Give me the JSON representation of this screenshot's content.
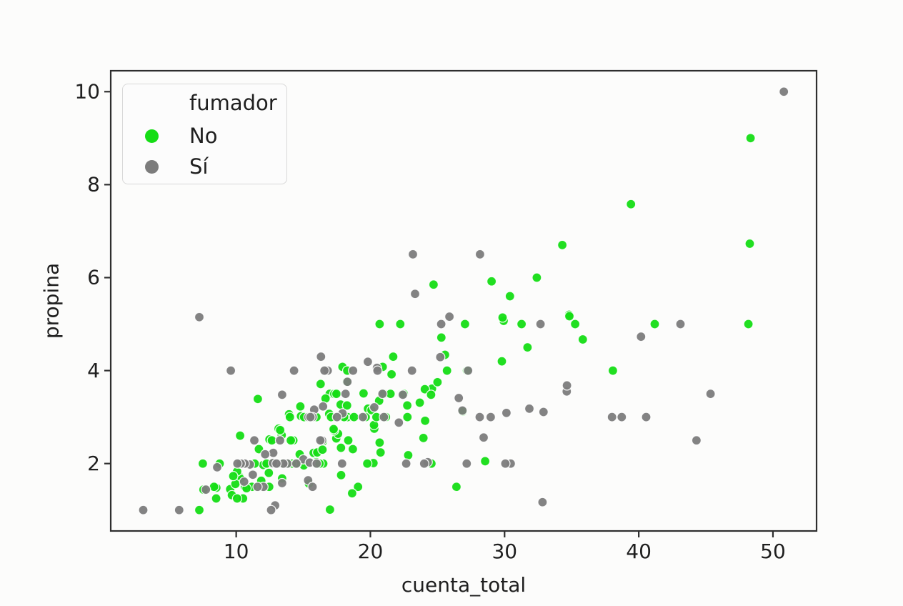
{
  "figure": {
    "background": "#fcfcfb",
    "text_color": "#1f1f1f",
    "spine_color": "#2e2e2e"
  },
  "chart_data": {
    "type": "scatter",
    "title": "",
    "xlabel": "cuenta_total",
    "ylabel": "propina",
    "xlim": [
      0.65,
      53.25
    ],
    "ylim": [
      0.55,
      10.45
    ],
    "x_ticks": [
      10,
      20,
      30,
      40,
      50
    ],
    "y_ticks": [
      2,
      4,
      6,
      8,
      10
    ],
    "grid": false,
    "legend": {
      "title": "fumador",
      "position": "upper left"
    },
    "series": [
      {
        "name": "No",
        "color": "#15dd15",
        "points": [
          [
            16.99,
            1.01
          ],
          [
            10.34,
            1.66
          ],
          [
            21.01,
            3.5
          ],
          [
            23.68,
            3.31
          ],
          [
            24.59,
            3.61
          ],
          [
            25.29,
            4.71
          ],
          [
            8.77,
            2.0
          ],
          [
            26.88,
            3.12
          ],
          [
            15.04,
            1.96
          ],
          [
            14.78,
            3.23
          ],
          [
            10.27,
            1.71
          ],
          [
            35.26,
            5.0
          ],
          [
            15.42,
            1.57
          ],
          [
            18.43,
            3.0
          ],
          [
            14.83,
            3.02
          ],
          [
            21.58,
            3.92
          ],
          [
            10.33,
            1.67
          ],
          [
            16.29,
            3.71
          ],
          [
            16.97,
            3.5
          ],
          [
            20.65,
            3.35
          ],
          [
            17.92,
            4.08
          ],
          [
            20.29,
            2.75
          ],
          [
            15.77,
            2.23
          ],
          [
            39.42,
            7.58
          ],
          [
            19.82,
            3.18
          ],
          [
            17.81,
            2.34
          ],
          [
            13.37,
            2.0
          ],
          [
            12.69,
            2.0
          ],
          [
            21.7,
            4.3
          ],
          [
            19.65,
            3.0
          ],
          [
            9.55,
            1.45
          ],
          [
            18.35,
            2.5
          ],
          [
            15.06,
            3.0
          ],
          [
            20.69,
            2.45
          ],
          [
            17.78,
            3.27
          ],
          [
            24.06,
            3.6
          ],
          [
            16.31,
            2.0
          ],
          [
            16.93,
            3.07
          ],
          [
            18.69,
            2.31
          ],
          [
            31.27,
            5.0
          ],
          [
            16.04,
            2.24
          ],
          [
            17.46,
            2.54
          ],
          [
            13.94,
            3.06
          ],
          [
            9.68,
            1.32
          ],
          [
            30.4,
            5.6
          ],
          [
            18.29,
            3.0
          ],
          [
            22.23,
            5.0
          ],
          [
            32.4,
            6.0
          ],
          [
            28.55,
            2.05
          ],
          [
            18.04,
            3.0
          ],
          [
            12.54,
            2.5
          ],
          [
            10.29,
            2.6
          ],
          [
            34.81,
            5.2
          ],
          [
            9.94,
            1.56
          ],
          [
            25.56,
            4.34
          ],
          [
            19.49,
            3.51
          ],
          [
            26.41,
            1.5
          ],
          [
            48.27,
            6.73
          ],
          [
            17.59,
            2.64
          ],
          [
            20.08,
            3.15
          ],
          [
            16.45,
            2.47
          ],
          [
            20.23,
            2.01
          ],
          [
            12.02,
            1.97
          ],
          [
            17.07,
            3.0
          ],
          [
            14.73,
            2.2
          ],
          [
            10.51,
            1.25
          ],
          [
            27.2,
            4.0
          ],
          [
            22.76,
            3.0
          ],
          [
            17.29,
            2.71
          ],
          [
            16.66,
            3.4
          ],
          [
            10.07,
            1.83
          ],
          [
            15.98,
            2.03
          ],
          [
            34.83,
            5.17
          ],
          [
            13.03,
            2.0
          ],
          [
            18.28,
            4.0
          ],
          [
            24.71,
            5.85
          ],
          [
            21.16,
            3.0
          ],
          [
            22.49,
            3.5
          ],
          [
            22.75,
            3.25
          ],
          [
            12.46,
            1.5
          ],
          [
            20.92,
            4.08
          ],
          [
            18.24,
            3.76
          ],
          [
            14.0,
            3.0
          ],
          [
            7.25,
            1.0
          ],
          [
            38.07,
            4.0
          ],
          [
            23.95,
            2.55
          ],
          [
            25.71,
            4.0
          ],
          [
            17.31,
            3.5
          ],
          [
            29.93,
            5.07
          ],
          [
            10.65,
            1.5
          ],
          [
            12.43,
            1.8
          ],
          [
            24.08,
            2.92
          ],
          [
            11.69,
            2.31
          ],
          [
            13.42,
            1.68
          ],
          [
            14.26,
            2.5
          ],
          [
            15.95,
            2.0
          ],
          [
            12.48,
            2.52
          ],
          [
            29.8,
            4.2
          ],
          [
            8.52,
            1.48
          ],
          [
            14.52,
            2.0
          ],
          [
            11.38,
            2.0
          ],
          [
            22.82,
            2.18
          ],
          [
            19.08,
            1.5
          ],
          [
            20.27,
            2.83
          ],
          [
            11.17,
            1.5
          ],
          [
            12.26,
            2.0
          ],
          [
            18.26,
            3.25
          ],
          [
            8.51,
            1.25
          ],
          [
            10.33,
            2.0
          ],
          [
            14.15,
            2.0
          ],
          [
            13.16,
            2.75
          ],
          [
            17.47,
            3.5
          ],
          [
            34.3,
            6.7
          ],
          [
            41.19,
            5.0
          ],
          [
            27.05,
            5.0
          ],
          [
            16.43,
            2.3
          ],
          [
            8.35,
            1.5
          ],
          [
            18.64,
            1.36
          ],
          [
            11.87,
            1.63
          ],
          [
            9.78,
            1.73
          ],
          [
            7.51,
            2.0
          ],
          [
            14.07,
            2.5
          ],
          [
            13.13,
            2.0
          ],
          [
            17.26,
            2.74
          ],
          [
            24.55,
            2.0
          ],
          [
            19.77,
            2.0
          ],
          [
            29.85,
            5.14
          ],
          [
            48.17,
            5.0
          ],
          [
            25.0,
            3.75
          ],
          [
            13.39,
            2.61
          ],
          [
            16.49,
            2.0
          ],
          [
            21.5,
            3.5
          ],
          [
            12.66,
            2.5
          ],
          [
            16.21,
            2.0
          ],
          [
            13.81,
            2.0
          ],
          [
            24.52,
            3.48
          ],
          [
            20.76,
            2.24
          ],
          [
            31.71,
            4.5
          ],
          [
            48.33,
            9.0
          ],
          [
            7.56,
            1.44
          ],
          [
            20.69,
            5.0
          ],
          [
            15.98,
            3.0
          ],
          [
            20.45,
            3.0
          ],
          [
            13.28,
            2.72
          ],
          [
            11.61,
            3.39
          ],
          [
            10.77,
            1.47
          ],
          [
            10.07,
            1.25
          ],
          [
            35.83,
            4.67
          ],
          [
            29.03,
            5.92
          ],
          [
            17.82,
            1.75
          ],
          [
            18.78,
            3.0
          ]
        ]
      },
      {
        "name": "Sí",
        "color": "#7c7c7c",
        "points": [
          [
            38.01,
            3.0
          ],
          [
            11.24,
            1.76
          ],
          [
            20.29,
            3.21
          ],
          [
            13.81,
            2.0
          ],
          [
            11.02,
            1.98
          ],
          [
            18.29,
            3.76
          ],
          [
            3.07,
            1.0
          ],
          [
            15.01,
            2.09
          ],
          [
            26.86,
            3.14
          ],
          [
            25.28,
            5.0
          ],
          [
            17.92,
            3.08
          ],
          [
            19.44,
            3.0
          ],
          [
            32.68,
            5.0
          ],
          [
            28.97,
            3.0
          ],
          [
            5.75,
            1.0
          ],
          [
            16.32,
            4.3
          ],
          [
            40.17,
            4.73
          ],
          [
            27.28,
            4.0
          ],
          [
            12.03,
            1.5
          ],
          [
            21.01,
            3.0
          ],
          [
            11.35,
            2.5
          ],
          [
            15.38,
            3.0
          ],
          [
            44.3,
            2.5
          ],
          [
            22.42,
            3.48
          ],
          [
            15.36,
            1.64
          ],
          [
            20.49,
            4.06
          ],
          [
            25.21,
            4.29
          ],
          [
            14.31,
            4.0
          ],
          [
            10.59,
            1.61
          ],
          [
            10.63,
            2.0
          ],
          [
            50.81,
            10.0
          ],
          [
            15.81,
            3.16
          ],
          [
            7.25,
            5.15
          ],
          [
            31.85,
            3.18
          ],
          [
            16.82,
            4.0
          ],
          [
            32.9,
            3.11
          ],
          [
            17.89,
            2.0
          ],
          [
            14.48,
            2.0
          ],
          [
            9.6,
            4.0
          ],
          [
            34.63,
            3.55
          ],
          [
            34.65,
            3.68
          ],
          [
            23.33,
            5.65
          ],
          [
            45.35,
            3.5
          ],
          [
            23.17,
            6.5
          ],
          [
            40.55,
            3.0
          ],
          [
            20.9,
            3.5
          ],
          [
            30.46,
            2.0
          ],
          [
            18.15,
            3.5
          ],
          [
            23.1,
            4.0
          ],
          [
            15.69,
            1.5
          ],
          [
            19.81,
            4.19
          ],
          [
            28.44,
            2.56
          ],
          [
            15.48,
            2.02
          ],
          [
            16.58,
            4.0
          ],
          [
            10.34,
            2.0
          ],
          [
            43.11,
            5.0
          ],
          [
            13.0,
            2.0
          ],
          [
            13.51,
            2.0
          ],
          [
            18.71,
            4.0
          ],
          [
            12.74,
            2.01
          ],
          [
            13.0,
            2.0
          ],
          [
            16.4,
            2.5
          ],
          [
            20.53,
            4.0
          ],
          [
            16.47,
            3.23
          ],
          [
            26.59,
            3.41
          ],
          [
            38.73,
            3.0
          ],
          [
            24.27,
            2.03
          ],
          [
            12.76,
            2.23
          ],
          [
            30.06,
            2.0
          ],
          [
            25.89,
            5.16
          ],
          [
            13.27,
            2.5
          ],
          [
            28.17,
            6.5
          ],
          [
            12.9,
            1.1
          ],
          [
            28.15,
            3.0
          ],
          [
            11.59,
            1.5
          ],
          [
            7.74,
            1.44
          ],
          [
            30.14,
            3.09
          ],
          [
            12.16,
            2.2
          ],
          [
            13.42,
            3.48
          ],
          [
            8.58,
            1.92
          ],
          [
            13.42,
            1.58
          ],
          [
            16.27,
            2.5
          ],
          [
            10.09,
            2.0
          ],
          [
            22.12,
            2.88
          ],
          [
            24.01,
            2.0
          ],
          [
            15.69,
            3.0
          ],
          [
            15.53,
            3.0
          ],
          [
            12.6,
            1.0
          ],
          [
            32.83,
            1.17
          ],
          [
            27.18,
            2.0
          ],
          [
            22.67,
            2.0
          ],
          [
            17.51,
            3.0
          ],
          [
            16.0,
            2.0
          ]
        ]
      }
    ]
  }
}
